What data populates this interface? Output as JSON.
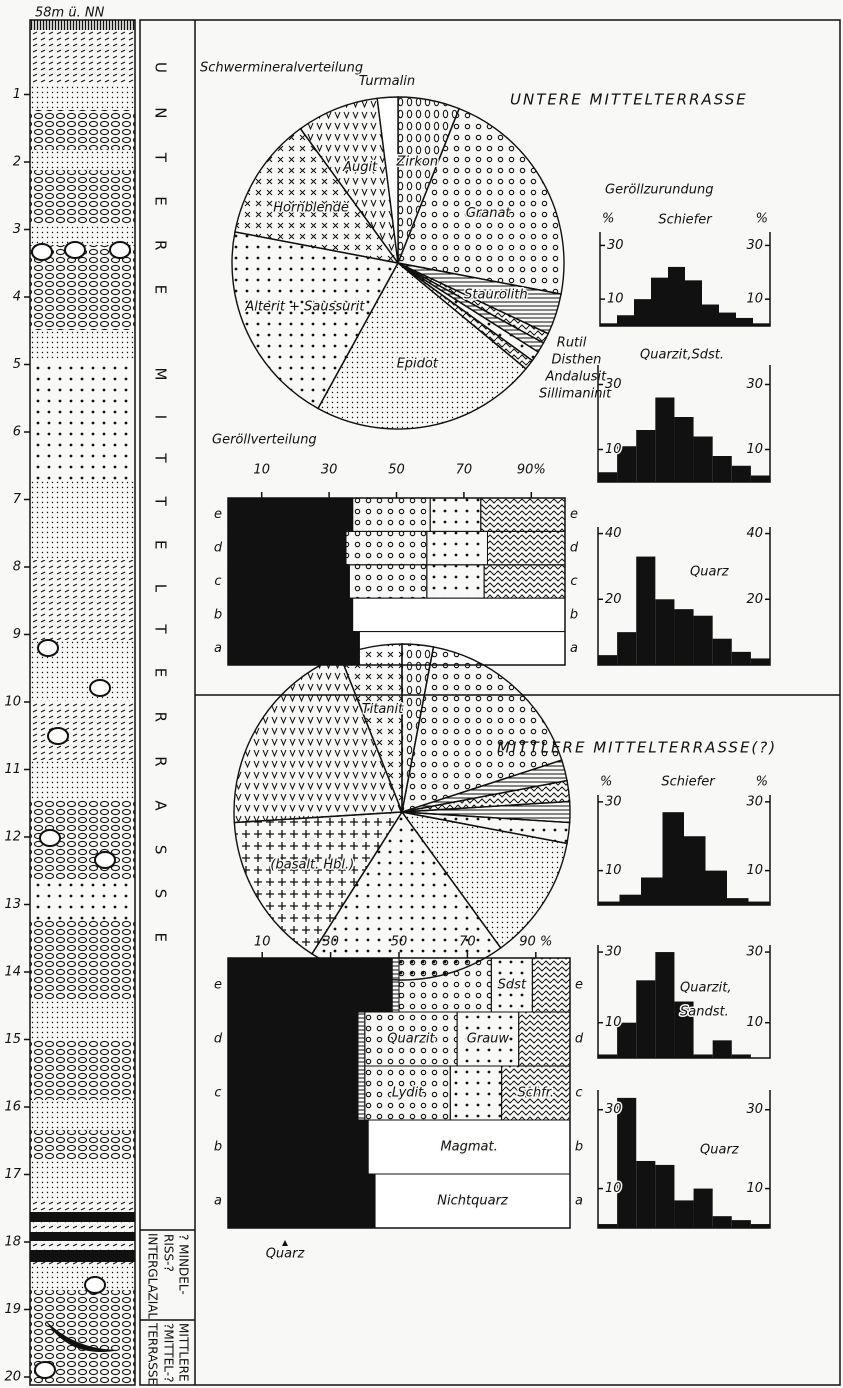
{
  "profile": {
    "title": "58m ü. NN",
    "depth_ticks": [
      1,
      2,
      3,
      4,
      5,
      6,
      7,
      8,
      9,
      10,
      11,
      12,
      13,
      14,
      15,
      16,
      17,
      18,
      19,
      20
    ]
  },
  "strata": {
    "upper": "UNTERE MITTELTERRASSE",
    "middle": [
      "? MINDEL-",
      "RISS-?",
      "INTERGLAZIAL"
    ],
    "lower": [
      "MITTLERE",
      "?MITTEL-?",
      "TERRASSE"
    ]
  },
  "sections": [
    {
      "title": "UNTERE MITTELTERRASSE",
      "pie": {
        "type": "pie",
        "title": "Schwermineralverteilung",
        "segments": [
          {
            "label": "Zirkon",
            "value": 6,
            "pattern": "zero"
          },
          {
            "label": "Granat",
            "value": 22,
            "pattern": "circles"
          },
          {
            "label": "Staurolith",
            "value": 4,
            "pattern": "hatch"
          },
          {
            "label": "Rutil",
            "value": 1,
            "pattern": "wavy"
          },
          {
            "label": "Disthen",
            "value": 1,
            "pattern": "hatch"
          },
          {
            "label": "Andalusit",
            "value": 1,
            "pattern": "dots"
          },
          {
            "label": "Sillimaninit",
            "value": 1,
            "pattern": "wavy"
          },
          {
            "label": "Epidot",
            "value": 22,
            "pattern": "finedots"
          },
          {
            "label": "Alterit + Saussurit",
            "value": 20,
            "pattern": "dots"
          },
          {
            "label": "Hornblende",
            "value": 12,
            "pattern": "x"
          },
          {
            "label": "Augit",
            "value": 8,
            "pattern": "v"
          },
          {
            "label": "Turmalin",
            "value": 2,
            "pattern": "none"
          }
        ]
      },
      "rounding": {
        "title": "Geröllzurundung",
        "histograms": [
          {
            "type": "histogram",
            "title": [
              "Schiefer"
            ],
            "unit": "%",
            "ylim": [
              0,
              35
            ],
            "yticks": [
              30,
              10
            ],
            "values": [
              1,
              4,
              10,
              18,
              22,
              17,
              8,
              5,
              3,
              1
            ]
          },
          {
            "type": "histogram",
            "title": [
              "Quarzit,Sdst."
            ],
            "ylim": [
              0,
              36
            ],
            "yticks": [
              30,
              10
            ],
            "values": [
              3,
              11,
              16,
              26,
              20,
              14,
              8,
              5,
              2
            ]
          },
          {
            "type": "histogram",
            "title": [
              "Quarz"
            ],
            "ylim": [
              0,
              42
            ],
            "yticks": [
              40,
              20
            ],
            "values": [
              3,
              10,
              33,
              20,
              17,
              15,
              8,
              4,
              2
            ]
          }
        ]
      },
      "pebbles": {
        "type": "stacked-bar",
        "title": "Geröllverteilung",
        "xlim": [
          0,
          100
        ],
        "xticks": [
          10,
          30,
          50,
          70,
          {
            "value": 90,
            "label": "90%"
          }
        ],
        "rows": [
          {
            "label": "e",
            "values": [
              37,
              23,
              15,
              25
            ],
            "patterns": [
              "black",
              "circles",
              "dots",
              "wavy"
            ]
          },
          {
            "label": "d",
            "values": [
              35,
              24,
              18,
              23
            ],
            "patterns": [
              "black",
              "circles",
              "dots",
              "wavy"
            ]
          },
          {
            "label": "c",
            "values": [
              36,
              23,
              17,
              24
            ],
            "patterns": [
              "black",
              "circles",
              "dots",
              "wavy"
            ]
          },
          {
            "label": "b",
            "values": [
              37,
              63
            ],
            "patterns": [
              "black",
              "none"
            ]
          },
          {
            "label": "a",
            "values": [
              39,
              61
            ],
            "patterns": [
              "black",
              "none"
            ]
          }
        ]
      }
    },
    {
      "title": "MITTLERE MITTELTERRASSE(?)",
      "pie": {
        "type": "pie",
        "segments": [
          {
            "label": null,
            "value": 3,
            "pattern": "zero"
          },
          {
            "label": null,
            "value": 17,
            "pattern": "circles"
          },
          {
            "label": null,
            "value": 2,
            "pattern": "hatch"
          },
          {
            "label": null,
            "value": 2,
            "pattern": "wavy"
          },
          {
            "label": null,
            "value": 2,
            "pattern": "hatch"
          },
          {
            "label": null,
            "value": 2,
            "pattern": "dots"
          },
          {
            "label": null,
            "value": 12,
            "pattern": "finedots"
          },
          {
            "label": null,
            "value": 19,
            "pattern": "dots"
          },
          {
            "label": "(basalt. Hbl.)",
            "value": 15,
            "pattern": "plus"
          },
          {
            "label": null,
            "value": 20,
            "pattern": "v"
          },
          {
            "label": "Titanit",
            "value": 6,
            "pattern": "x"
          }
        ]
      },
      "rounding": {
        "histograms": [
          {
            "type": "histogram",
            "title": [
              "Schiefer"
            ],
            "unit": "%",
            "ylim": [
              0,
              32
            ],
            "yticks": [
              30,
              10
            ],
            "values": [
              1,
              3,
              8,
              27,
              20,
              10,
              2,
              1
            ]
          },
          {
            "type": "histogram",
            "title": [
              "Quarzit,",
              "Sandst."
            ],
            "ylim": [
              0,
              32
            ],
            "yticks": [
              30,
              10
            ],
            "values": [
              1,
              10,
              22,
              30,
              16,
              1,
              5,
              1,
              0
            ]
          },
          {
            "type": "histogram",
            "title": [
              "Quarz"
            ],
            "ylim": [
              0,
              35
            ],
            "yticks": [
              30,
              10
            ],
            "values": [
              1,
              33,
              17,
              16,
              7,
              10,
              3,
              2,
              1
            ]
          }
        ]
      },
      "pebbles": {
        "type": "stacked-bar",
        "annotation": "Quarz",
        "xlim": [
          0,
          100
        ],
        "xticks": [
          10,
          30,
          50,
          70,
          {
            "value": 90,
            "label": "90 %"
          }
        ],
        "rows": [
          {
            "label": "e",
            "values": [
              48,
              2,
              27,
              12,
              11
            ],
            "patterns": [
              "black",
              "hatch",
              "circles",
              "dots",
              "wavy"
            ],
            "segment_labels": [
              null,
              null,
              null,
              "Sdst",
              null
            ]
          },
          {
            "label": "d",
            "values": [
              38,
              2,
              27,
              18,
              15
            ],
            "patterns": [
              "black",
              "hatch",
              "circles",
              "dots",
              "wavy"
            ],
            "segment_labels": [
              null,
              null,
              "Quarzit",
              "Grauw",
              null
            ]
          },
          {
            "label": "c",
            "values": [
              38,
              2,
              25,
              15,
              20
            ],
            "patterns": [
              "black",
              "hatch",
              "circles",
              "dots",
              "wavy"
            ],
            "segment_labels": [
              null,
              null,
              "Lydit",
              null,
              "Schfr."
            ]
          },
          {
            "label": "b",
            "values": [
              41,
              59
            ],
            "patterns": [
              "black",
              "none"
            ],
            "segment_labels": [
              null,
              "Magmat."
            ]
          },
          {
            "label": "a",
            "values": [
              43,
              57
            ],
            "patterns": [
              "black",
              "none"
            ],
            "segment_labels": [
              null,
              "Nichtquarz"
            ]
          }
        ]
      }
    }
  ]
}
